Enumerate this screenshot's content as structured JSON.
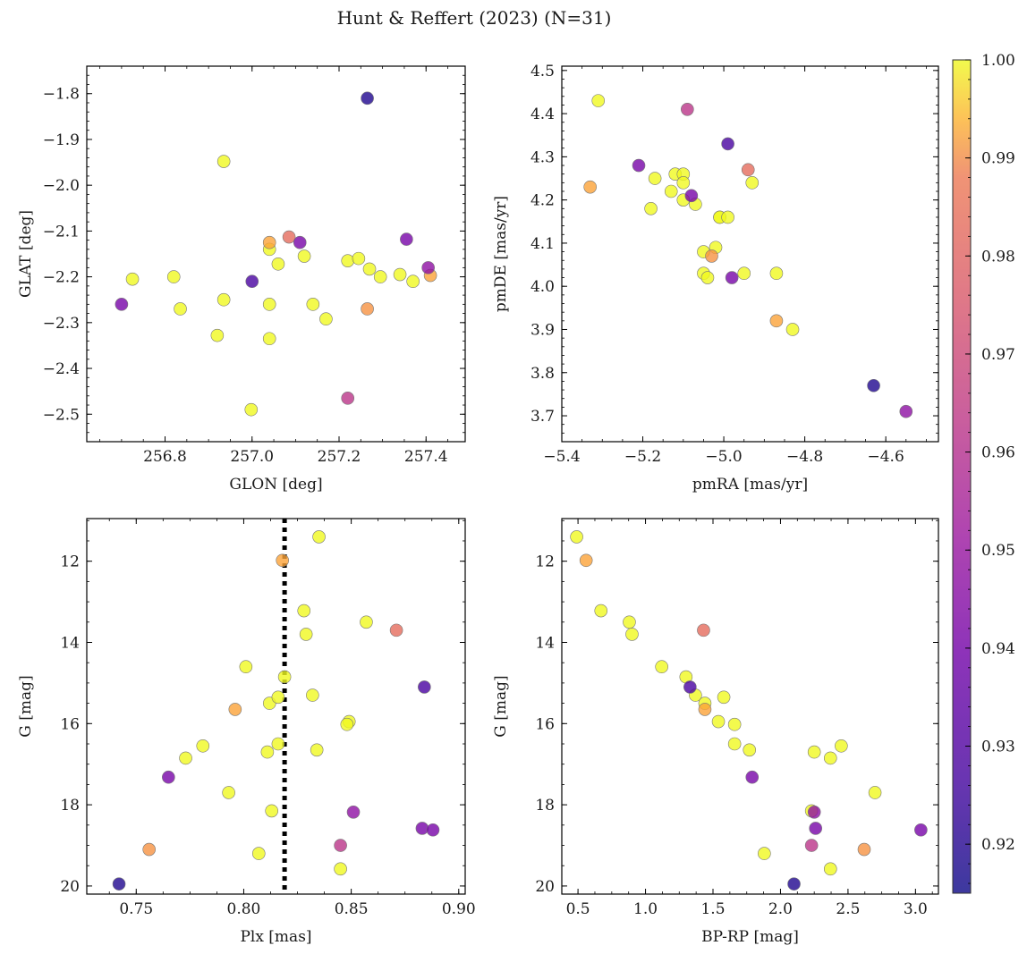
{
  "figure": {
    "title": "Hunt & Reffert (2023) (N=31)"
  },
  "colorbar": {
    "colormap": "plasma",
    "range": [
      0.915,
      1.0
    ],
    "ticks": [
      "1.00",
      "0.99",
      "0.98",
      "0.97",
      "0.96",
      "0.95",
      "0.94",
      "0.93",
      "0.92"
    ],
    "tick_values": [
      1.0,
      0.99,
      0.98,
      0.97,
      0.96,
      0.95,
      0.94,
      0.93,
      0.92
    ]
  },
  "stars": [
    {
      "glon": 256.7,
      "glat": -2.26,
      "pmra": -4.98,
      "pmde": 4.02,
      "plx": 0.883,
      "g": 18.58,
      "bprp": 2.26,
      "prob": 0.935
    },
    {
      "glon": 256.725,
      "glat": -2.205,
      "pmra": -5.01,
      "pmde": 4.16,
      "plx": 0.829,
      "g": 13.8,
      "bprp": 0.9,
      "prob": 1.0
    },
    {
      "glon": 256.82,
      "glat": -2.2,
      "pmra": -4.95,
      "pmde": 4.03,
      "plx": 0.857,
      "g": 13.5,
      "bprp": 0.88,
      "prob": 1.0
    },
    {
      "glon": 256.835,
      "glat": -2.27,
      "pmra": -5.12,
      "pmde": 4.26,
      "plx": 0.801,
      "g": 14.6,
      "bprp": 1.12,
      "prob": 1.0
    },
    {
      "glon": 256.92,
      "glat": -2.328,
      "pmra": -5.05,
      "pmde": 4.03,
      "plx": 0.832,
      "g": 15.3,
      "bprp": 1.37,
      "prob": 1.0
    },
    {
      "glon": 256.935,
      "glat": -1.948,
      "pmra": -5.1,
      "pmde": 4.2,
      "plx": 0.812,
      "g": 15.5,
      "bprp": 1.44,
      "prob": 1.0
    },
    {
      "glon": 256.935,
      "glat": -2.25,
      "pmra": -5.1,
      "pmde": 4.26,
      "plx": 0.816,
      "g": 15.35,
      "bprp": 1.58,
      "prob": 1.0
    },
    {
      "glon": 256.998,
      "glat": -2.49,
      "pmra": -5.13,
      "pmde": 4.22,
      "plx": 0.849,
      "g": 15.95,
      "bprp": 1.54,
      "prob": 1.0
    },
    {
      "glon": 257.04,
      "glat": -2.125,
      "pmra": -5.33,
      "pmde": 4.23,
      "plx": 0.796,
      "g": 15.65,
      "bprp": 1.44,
      "prob": 0.982
    },
    {
      "glon": 257.04,
      "glat": -2.14,
      "pmra": -5.02,
      "pmde": 4.09,
      "plx": 0.848,
      "g": 16.02,
      "bprp": 1.66,
      "prob": 1.0
    },
    {
      "glon": 257.04,
      "glat": -2.26,
      "pmra": -5.04,
      "pmde": 4.02,
      "plx": 0.781,
      "g": 16.55,
      "bprp": 2.45,
      "prob": 1.0
    },
    {
      "glon": 257.04,
      "glat": -2.335,
      "pmra": -5.01,
      "pmde": 4.16,
      "plx": 0.811,
      "g": 16.7,
      "bprp": 2.25,
      "prob": 1.0
    },
    {
      "glon": 257.06,
      "glat": -2.172,
      "pmra": -4.87,
      "pmde": 4.03,
      "plx": 0.834,
      "g": 16.65,
      "bprp": 1.77,
      "prob": 1.0
    },
    {
      "glon": 257.085,
      "glat": -2.113,
      "pmra": -4.94,
      "pmde": 4.27,
      "plx": 0.871,
      "g": 13.7,
      "bprp": 1.43,
      "prob": 0.968
    },
    {
      "glon": 257.11,
      "glat": -2.125,
      "pmra": -5.21,
      "pmde": 4.28,
      "plx": 0.765,
      "g": 17.32,
      "bprp": 1.79,
      "prob": 0.935
    },
    {
      "glon": 257.12,
      "glat": -2.155,
      "pmra": -5.31,
      "pmde": 4.43,
      "plx": 0.835,
      "g": 11.4,
      "bprp": 0.49,
      "prob": 1.0
    },
    {
      "glon": 257.14,
      "glat": -2.26,
      "pmra": -5.05,
      "pmde": 4.08,
      "plx": 0.773,
      "g": 16.85,
      "bprp": 2.37,
      "prob": 1.0
    },
    {
      "glon": 257.17,
      "glat": -2.292,
      "pmra": -4.83,
      "pmde": 3.9,
      "plx": 0.807,
      "g": 19.2,
      "bprp": 1.88,
      "prob": 1.0
    },
    {
      "glon": 257.22,
      "glat": -2.165,
      "pmra": -4.93,
      "pmde": 4.24,
      "plx": 0.813,
      "g": 18.15,
      "bprp": 2.23,
      "prob": 1.0
    },
    {
      "glon": 257.22,
      "glat": -2.465,
      "pmra": -5.09,
      "pmde": 4.41,
      "plx": 0.845,
      "g": 19.0,
      "bprp": 2.23,
      "prob": 0.952
    },
    {
      "glon": 257.265,
      "glat": -1.81,
      "pmra": -4.63,
      "pmde": 3.77,
      "plx": 0.742,
      "g": 19.95,
      "bprp": 2.1,
      "prob": 0.918
    },
    {
      "glon": 257.265,
      "glat": -2.27,
      "pmra": -5.03,
      "pmde": 4.07,
      "plx": 0.756,
      "g": 19.1,
      "bprp": 2.62,
      "prob": 0.978
    },
    {
      "glon": 257.245,
      "glat": -2.16,
      "pmra": -5.1,
      "pmde": 4.24,
      "plx": 0.816,
      "g": 16.5,
      "bprp": 1.66,
      "prob": 1.0
    },
    {
      "glon": 257.27,
      "glat": -2.183,
      "pmra": -5.17,
      "pmde": 4.25,
      "plx": 0.828,
      "g": 13.22,
      "bprp": 0.67,
      "prob": 1.0
    },
    {
      "glon": 257.295,
      "glat": -2.2,
      "pmra": -5.07,
      "pmde": 4.19,
      "plx": 0.793,
      "g": 17.7,
      "bprp": 2.7,
      "prob": 1.0
    },
    {
      "glon": 257.34,
      "glat": -2.195,
      "pmra": -5.18,
      "pmde": 4.18,
      "plx": 0.819,
      "g": 14.85,
      "bprp": 1.3,
      "prob": 1.0
    },
    {
      "glon": 257.355,
      "glat": -2.118,
      "pmra": -5.08,
      "pmde": 4.21,
      "plx": 0.888,
      "g": 18.62,
      "bprp": 3.04,
      "prob": 0.935
    },
    {
      "glon": 257.37,
      "glat": -2.21,
      "pmra": -4.99,
      "pmde": 4.16,
      "plx": 0.845,
      "g": 19.58,
      "bprp": 2.37,
      "prob": 1.0
    },
    {
      "glon": 257.405,
      "glat": -2.18,
      "pmra": -4.55,
      "pmde": 3.71,
      "plx": 0.851,
      "g": 18.18,
      "bprp": 2.25,
      "prob": 0.94
    },
    {
      "glon": 257.41,
      "glat": -2.197,
      "pmra": -4.87,
      "pmde": 3.92,
      "plx": 0.818,
      "g": 11.98,
      "bprp": 0.56,
      "prob": 0.982
    },
    {
      "glon": 257.0,
      "glat": -2.21,
      "pmra": -4.99,
      "pmde": 4.33,
      "plx": 0.884,
      "g": 15.1,
      "bprp": 1.33,
      "prob": 0.925
    }
  ],
  "chart_data": [
    {
      "type": "scatter",
      "xlabel": "GLON [deg]",
      "ylabel": "GLAT [deg]",
      "x_field": "glon",
      "y_field": "glat",
      "xlim": [
        256.62,
        257.49
      ],
      "ylim": [
        -2.56,
        -1.74
      ],
      "xticks": [
        256.8,
        257.0,
        257.2,
        257.4
      ],
      "xtick_labels": [
        "256.8",
        "257.0",
        "257.2",
        "257.4"
      ],
      "yticks": [
        -1.8,
        -1.9,
        -2.0,
        -2.1,
        -2.2,
        -2.3,
        -2.4,
        -2.5
      ],
      "ytick_labels": [
        "−1.8",
        "−1.9",
        "−2.0",
        "−2.1",
        "−2.2",
        "−2.3",
        "−2.4",
        "−2.5"
      ],
      "y_inverted": false
    },
    {
      "type": "scatter",
      "xlabel": "pmRA [mas/yr]",
      "ylabel": "pmDE [mas/yr]",
      "x_field": "pmra",
      "y_field": "pmde",
      "xlim": [
        -5.4,
        -4.47
      ],
      "ylim": [
        3.64,
        4.51
      ],
      "xticks": [
        -5.4,
        -5.2,
        -5.0,
        -4.8,
        -4.6
      ],
      "xtick_labels": [
        "−5.4",
        "−5.2",
        "−5.0",
        "−4.8",
        "−4.6"
      ],
      "yticks": [
        3.7,
        3.8,
        3.9,
        4.0,
        4.1,
        4.2,
        4.3,
        4.4,
        4.5
      ],
      "ytick_labels": [
        "3.7",
        "3.8",
        "3.9",
        "4.0",
        "4.1",
        "4.2",
        "4.3",
        "4.4",
        "4.5"
      ],
      "y_inverted": false
    },
    {
      "type": "scatter",
      "xlabel": "Plx [mas]",
      "ylabel": "G [mag]",
      "x_field": "plx",
      "y_field": "g",
      "xlim": [
        0.727,
        0.903
      ],
      "ylim": [
        20.2,
        10.95
      ],
      "xticks": [
        0.75,
        0.8,
        0.85,
        0.9
      ],
      "xtick_labels": [
        "0.75",
        "0.80",
        "0.85",
        "0.90"
      ],
      "yticks": [
        12,
        14,
        16,
        18,
        20
      ],
      "ytick_labels": [
        "12",
        "14",
        "16",
        "18",
        "20"
      ],
      "y_inverted": true,
      "vline": 0.819
    },
    {
      "type": "scatter",
      "xlabel": "BP-RP [mag]",
      "ylabel": "G [mag]",
      "x_field": "bprp",
      "y_field": "g",
      "xlim": [
        0.38,
        3.17
      ],
      "ylim": [
        20.2,
        10.95
      ],
      "xticks": [
        0.5,
        1.0,
        1.5,
        2.0,
        2.5,
        3.0
      ],
      "xtick_labels": [
        "0.5",
        "1.0",
        "1.5",
        "2.0",
        "2.5",
        "3.0"
      ],
      "yticks": [
        12,
        14,
        16,
        18,
        20
      ],
      "ytick_labels": [
        "12",
        "14",
        "16",
        "18",
        "20"
      ],
      "y_inverted": true
    }
  ]
}
